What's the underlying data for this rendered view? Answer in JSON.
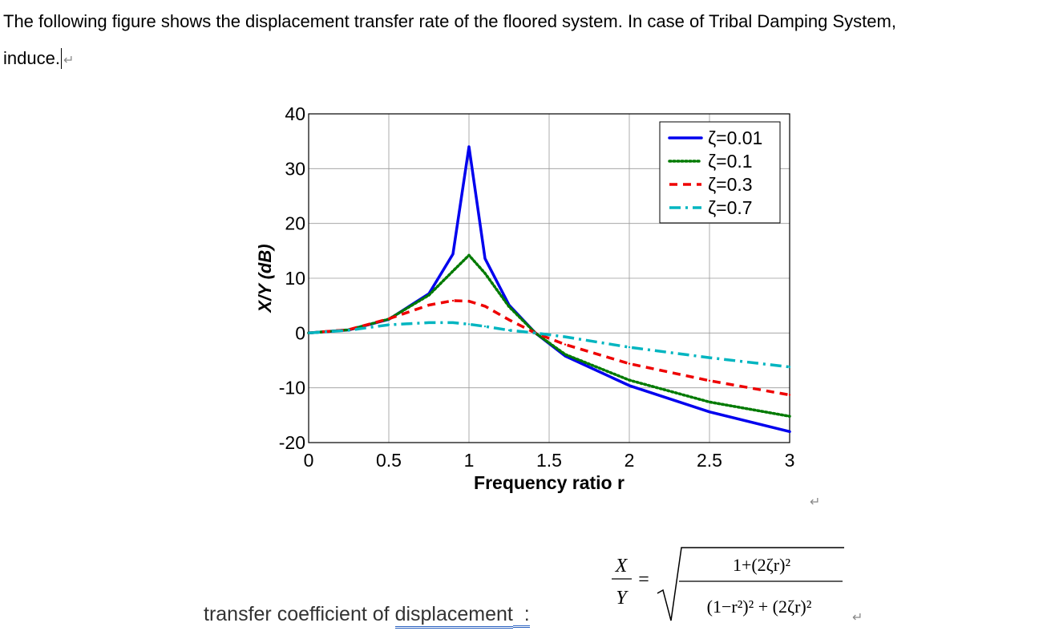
{
  "document": {
    "paragraph_line1": "The following figure shows the displacement transfer rate of the floored system. In case of Tribal Damping System,",
    "paragraph_line2": "induce.",
    "paragraph_mark": "↵",
    "transfer_label_prefix": "transfer coefficient of ",
    "transfer_label_underlined": "displacement",
    "transfer_label_colon": ":",
    "formula": {
      "lhs_num": "X",
      "lhs_den": "Y",
      "equals": "=",
      "rhs_num": "1+(2ζr)²",
      "rhs_den": "(1−r²)² + (2ζr)²"
    }
  },
  "chart_data": {
    "type": "line",
    "title": "",
    "xlabel": "Frequency ratio r",
    "ylabel": "X/Y (dB)",
    "xlim": [
      0,
      3
    ],
    "ylim": [
      -20,
      40
    ],
    "xticks": [
      "0",
      "0.5",
      "1",
      "1.5",
      "2",
      "2.5",
      "3"
    ],
    "yticks": [
      "-20",
      "-10",
      "0",
      "10",
      "20",
      "30",
      "40"
    ],
    "grid": true,
    "legend_position": "top-right",
    "x": [
      0,
      0.25,
      0.5,
      0.75,
      0.9,
      1.0,
      1.1,
      1.25,
      1.414,
      1.6,
      2.0,
      2.5,
      3.0
    ],
    "series": [
      {
        "name": "ζ=0.01",
        "color": "#0000ee",
        "style": "solid",
        "values": [
          0,
          0.56,
          2.5,
          7.16,
          14.4,
          34.0,
          13.6,
          5.1,
          0,
          -4.2,
          -9.6,
          -14.4,
          -18.0
        ]
      },
      {
        "name": "ζ=0.1",
        "color": "#007a00",
        "style": "dotted",
        "values": [
          0,
          0.57,
          2.54,
          6.91,
          11.3,
          14.2,
          10.9,
          4.8,
          0,
          -3.9,
          -8.6,
          -12.6,
          -15.2
        ]
      },
      {
        "name": "ζ=0.3",
        "color": "#ee0000",
        "style": "dashed",
        "values": [
          0,
          0.6,
          2.6,
          5.1,
          5.9,
          5.8,
          4.9,
          2.4,
          0,
          -2.1,
          -5.6,
          -8.7,
          -11.3
        ]
      },
      {
        "name": "ζ=0.7",
        "color": "#00b5c0",
        "style": "dashdot",
        "values": [
          0,
          0.5,
          1.5,
          1.9,
          1.9,
          1.6,
          1.2,
          0.5,
          0,
          -0.7,
          -2.6,
          -4.5,
          -6.2
        ]
      }
    ]
  }
}
